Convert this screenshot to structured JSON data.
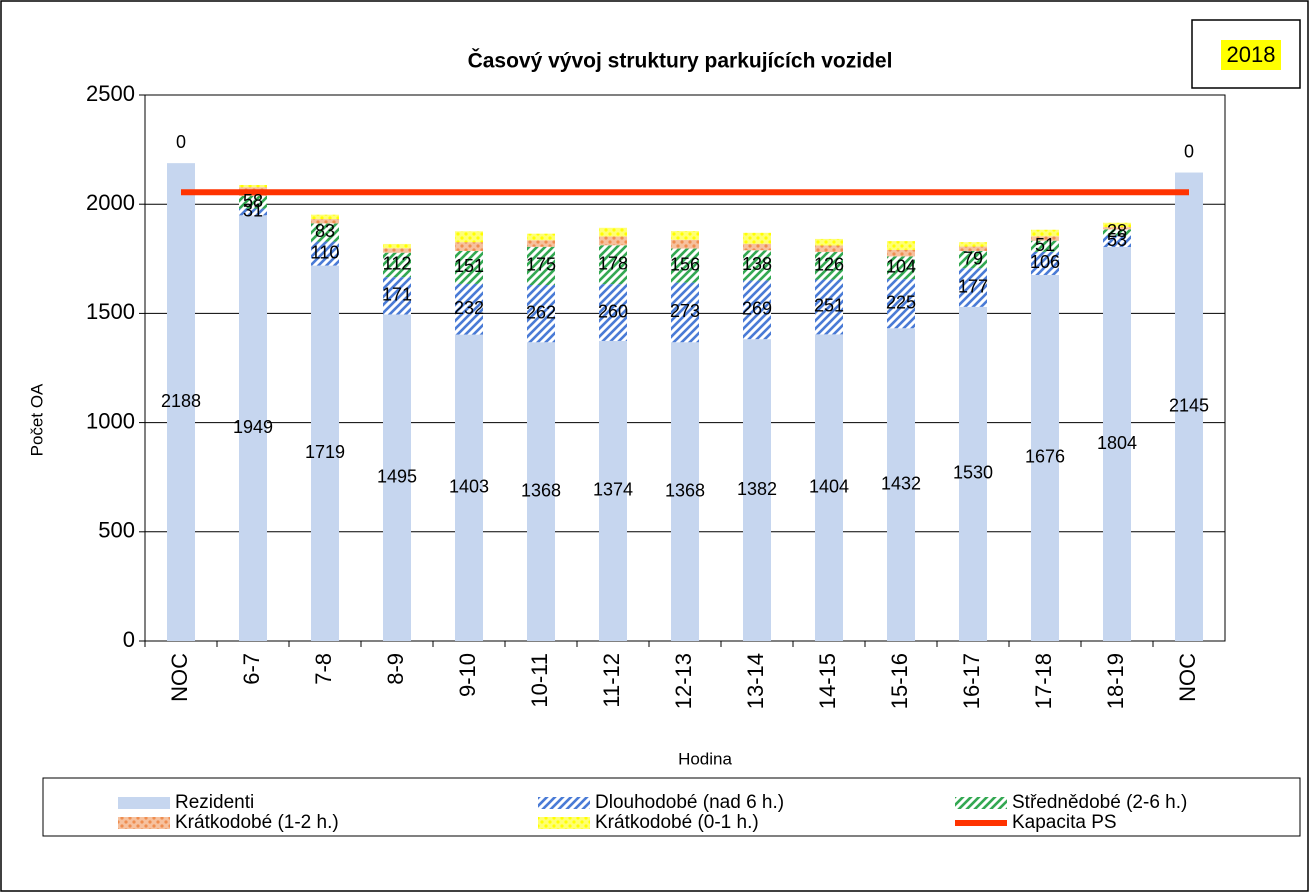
{
  "chart_data": {
    "type": "bar",
    "stacked": true,
    "title": "Časový vývoj struktury parkujících vozidel",
    "badge": "2018",
    "x_label": "Hodina",
    "y_label": "Počet OA",
    "categories": [
      "NOC",
      "6-7",
      "7-8",
      "8-9",
      "9-10",
      "10-11",
      "11-12",
      "12-13",
      "13-14",
      "14-15",
      "15-16",
      "16-17",
      "17-18",
      "18-19",
      "NOC"
    ],
    "ylim": [
      0,
      2500
    ],
    "yticks": [
      0,
      500,
      1000,
      1500,
      2000,
      2500
    ],
    "grid": true,
    "series": [
      {
        "name": "Rezidenti",
        "type": "bar",
        "pattern": "solid",
        "color": "#c6d6ef",
        "show_labels": true,
        "values": [
          2188,
          1949,
          1719,
          1495,
          1403,
          1368,
          1374,
          1368,
          1382,
          1404,
          1432,
          1530,
          1676,
          1804,
          2145
        ]
      },
      {
        "name": "Dlouhodobé (nad 6 h.)",
        "type": "bar",
        "pattern": "hatch",
        "color": "#4a7bd6",
        "show_labels": true,
        "values": [
          null,
          31,
          110,
          171,
          232,
          262,
          260,
          273,
          269,
          251,
          225,
          177,
          106,
          53,
          null
        ]
      },
      {
        "name": "Střednědobé (2-6 h.)",
        "type": "bar",
        "pattern": "hatch",
        "color": "#33a852",
        "show_labels": true,
        "values": [
          0,
          58,
          83,
          112,
          151,
          175,
          178,
          156,
          138,
          126,
          104,
          79,
          51,
          28,
          0
        ]
      },
      {
        "name": "Krátkodobé (1-2 h.)",
        "type": "bar",
        "pattern": "dots",
        "color": "#ef8d4f",
        "show_labels": false,
        "values": [
          0,
          40,
          20,
          20,
          40,
          30,
          40,
          40,
          30,
          30,
          30,
          20,
          20,
          10,
          0
        ]
      },
      {
        "name": "Krátkodobé (0-1 h.)",
        "type": "bar",
        "pattern": "dots",
        "color": "#ffff00",
        "show_labels": false,
        "values": [
          0,
          10,
          20,
          20,
          50,
          30,
          40,
          40,
          50,
          30,
          40,
          20,
          30,
          20,
          0
        ]
      },
      {
        "name": "Kapacita PS",
        "type": "line",
        "color": "#ff3300",
        "values": [
          2055,
          2055,
          2055,
          2055,
          2055,
          2055,
          2055,
          2055,
          2055,
          2055,
          2055,
          2055,
          2055,
          2055,
          2055
        ]
      }
    ]
  }
}
